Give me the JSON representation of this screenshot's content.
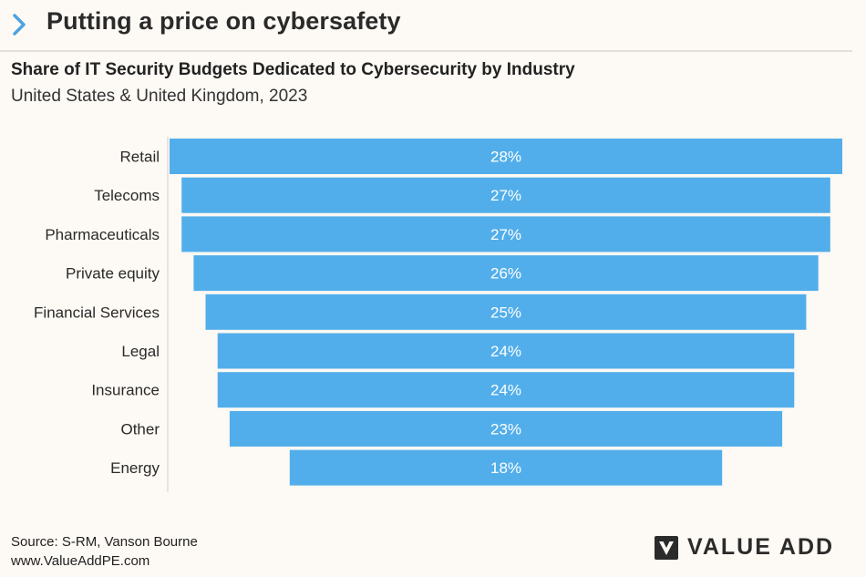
{
  "header": {
    "title": "Putting a price on cybersafety"
  },
  "chart_data": {
    "type": "bar",
    "orientation": "horizontal",
    "layout": "centered-funnel",
    "title": "Share of IT Security Budgets Dedicated to Cybersecurity by Industry",
    "subtitle": "United States & United Kingdom, 2023",
    "categories": [
      "Retail",
      "Telecoms",
      "Pharmaceuticals",
      "Private equity",
      "Financial Services",
      "Legal",
      "Insurance",
      "Other",
      "Energy"
    ],
    "values": [
      28,
      27,
      27,
      26,
      25,
      24,
      24,
      23,
      18
    ],
    "value_labels": [
      "28%",
      "27%",
      "27%",
      "26%",
      "25%",
      "24%",
      "24%",
      "23%",
      "18%"
    ],
    "unit": "%",
    "bar_color": "#52aeea",
    "label_color": "#ffffff",
    "grid": false,
    "legend": "none"
  },
  "footer": {
    "source": "Source: S-RM, Vanson Bourne",
    "website": "www.ValueAddPE.com"
  },
  "brand": {
    "name": "VALUE ADD",
    "logo_icon": "value-add-logo-icon"
  },
  "colors": {
    "background": "#fdf9f4",
    "accent": "#4da3e0",
    "bar": "#52aeea",
    "text": "#222222"
  }
}
